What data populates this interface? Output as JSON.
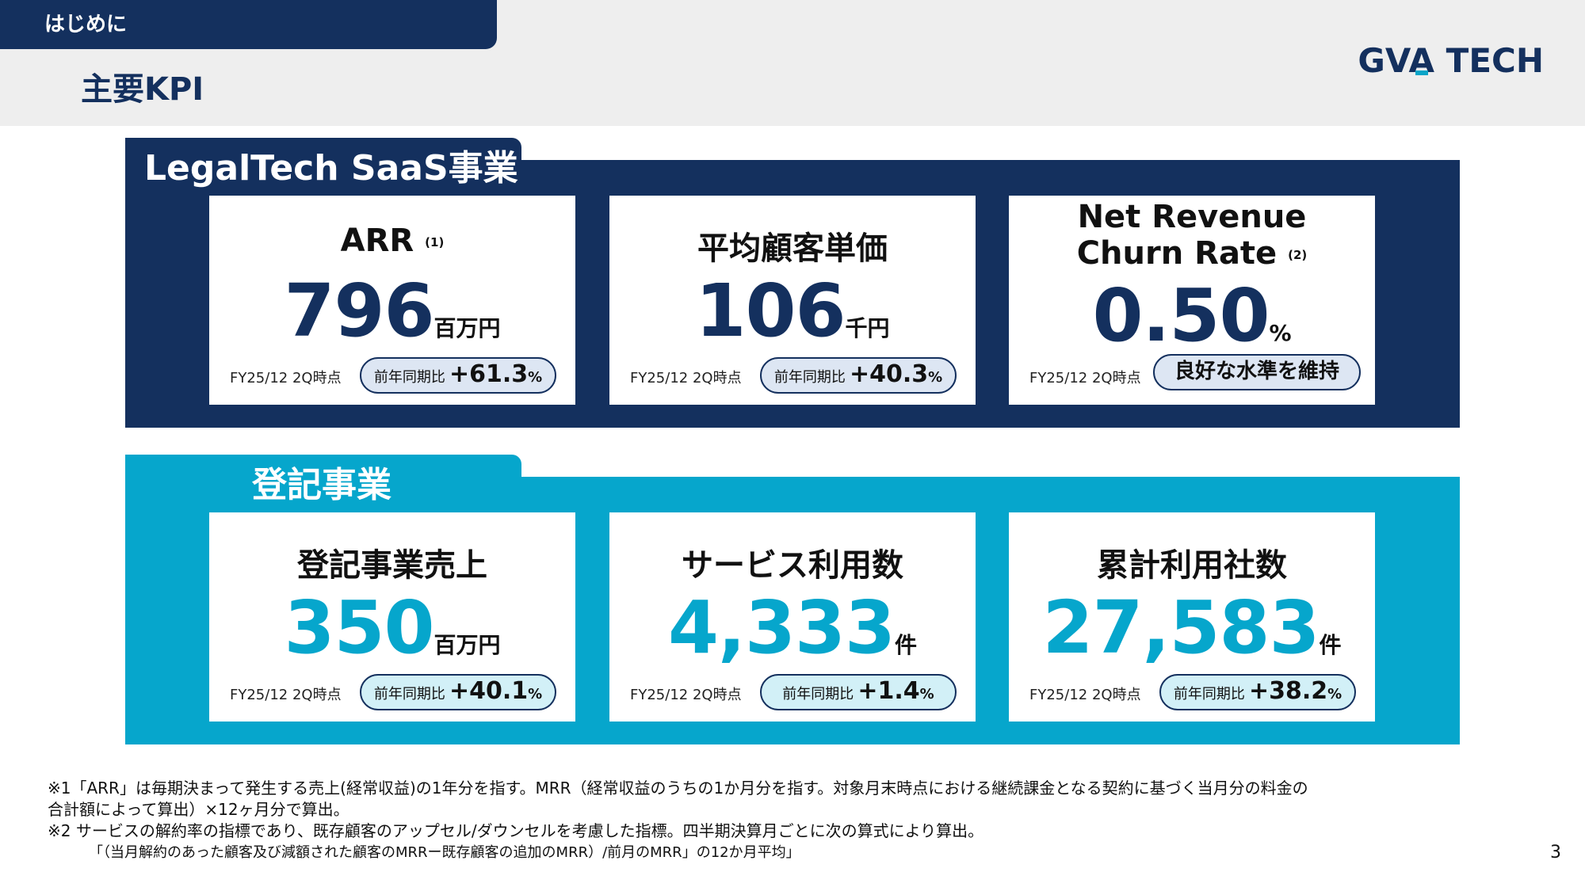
{
  "header": {
    "section": "はじめに",
    "title": "主要KPI",
    "logo": {
      "part1": "GV",
      "part2": "A",
      "part3": " TECH"
    }
  },
  "colors": {
    "navy": "#14305e",
    "cyan": "#06a6cc",
    "pill_dark_bg": "#dde6f3",
    "pill_light_bg": "#d2f0f7"
  },
  "legaltech": {
    "title": "LegalTech SaaS事業",
    "cards": [
      {
        "label": "ARR",
        "note": "(1)",
        "value": "796",
        "unit": "百万円",
        "asof": "FY25/12 2Q時点",
        "pill_label": "前年同期比",
        "pill_num": "+61.3",
        "pill_pct": "%"
      },
      {
        "label": "平均顧客単価",
        "value": "106",
        "unit": "千円",
        "asof": "FY25/12 2Q時点",
        "pill_label": "前年同期比",
        "pill_num": "+40.3",
        "pill_pct": "%"
      },
      {
        "label_line1": "Net Revenue",
        "label_line2": "Churn Rate",
        "note": "(2)",
        "value": "0.50",
        "unit": "%",
        "asof": "FY25/12 2Q時点",
        "pill_text": "良好な水準を維持"
      }
    ]
  },
  "registration": {
    "title": "登記事業",
    "cards": [
      {
        "label": "登記事業売上",
        "value": "350",
        "unit": "百万円",
        "asof": "FY25/12 2Q時点",
        "pill_label": "前年同期比",
        "pill_num": "+40.1",
        "pill_pct": "%"
      },
      {
        "label": "サービス利用数",
        "value": "4,333",
        "unit": "件",
        "asof": "FY25/12 2Q時点",
        "pill_label": "前年同期比",
        "pill_num": "+1.4",
        "pill_pct": "%"
      },
      {
        "label": "累計利用社数",
        "value": "27,583",
        "unit": "件",
        "asof": "FY25/12 2Q時点",
        "pill_label": "前年同期比",
        "pill_num": "+38.2",
        "pill_pct": "%"
      }
    ]
  },
  "footnotes": {
    "line1": "※1「ARR」は毎期決まって発生する売上(経常収益)の1年分を指す。MRR（経常収益のうちの1か月分を指す。対象月末時点における継続課金となる契約に基づく当月分の料金の",
    "line2": "合計額によって算出）×12ヶ月分で算出。",
    "line3": "※2 サービスの解約率の指標であり、既存顧客のアップセル/ダウンセルを考慮した指標。四半期決算月ごとに次の算式により算出。",
    "line4": "「（当月解約のあった顧客及び減額された顧客のMRRー既存顧客の追加のMRR）/前月のMRR」の12か月平均」"
  },
  "page_number": "3"
}
